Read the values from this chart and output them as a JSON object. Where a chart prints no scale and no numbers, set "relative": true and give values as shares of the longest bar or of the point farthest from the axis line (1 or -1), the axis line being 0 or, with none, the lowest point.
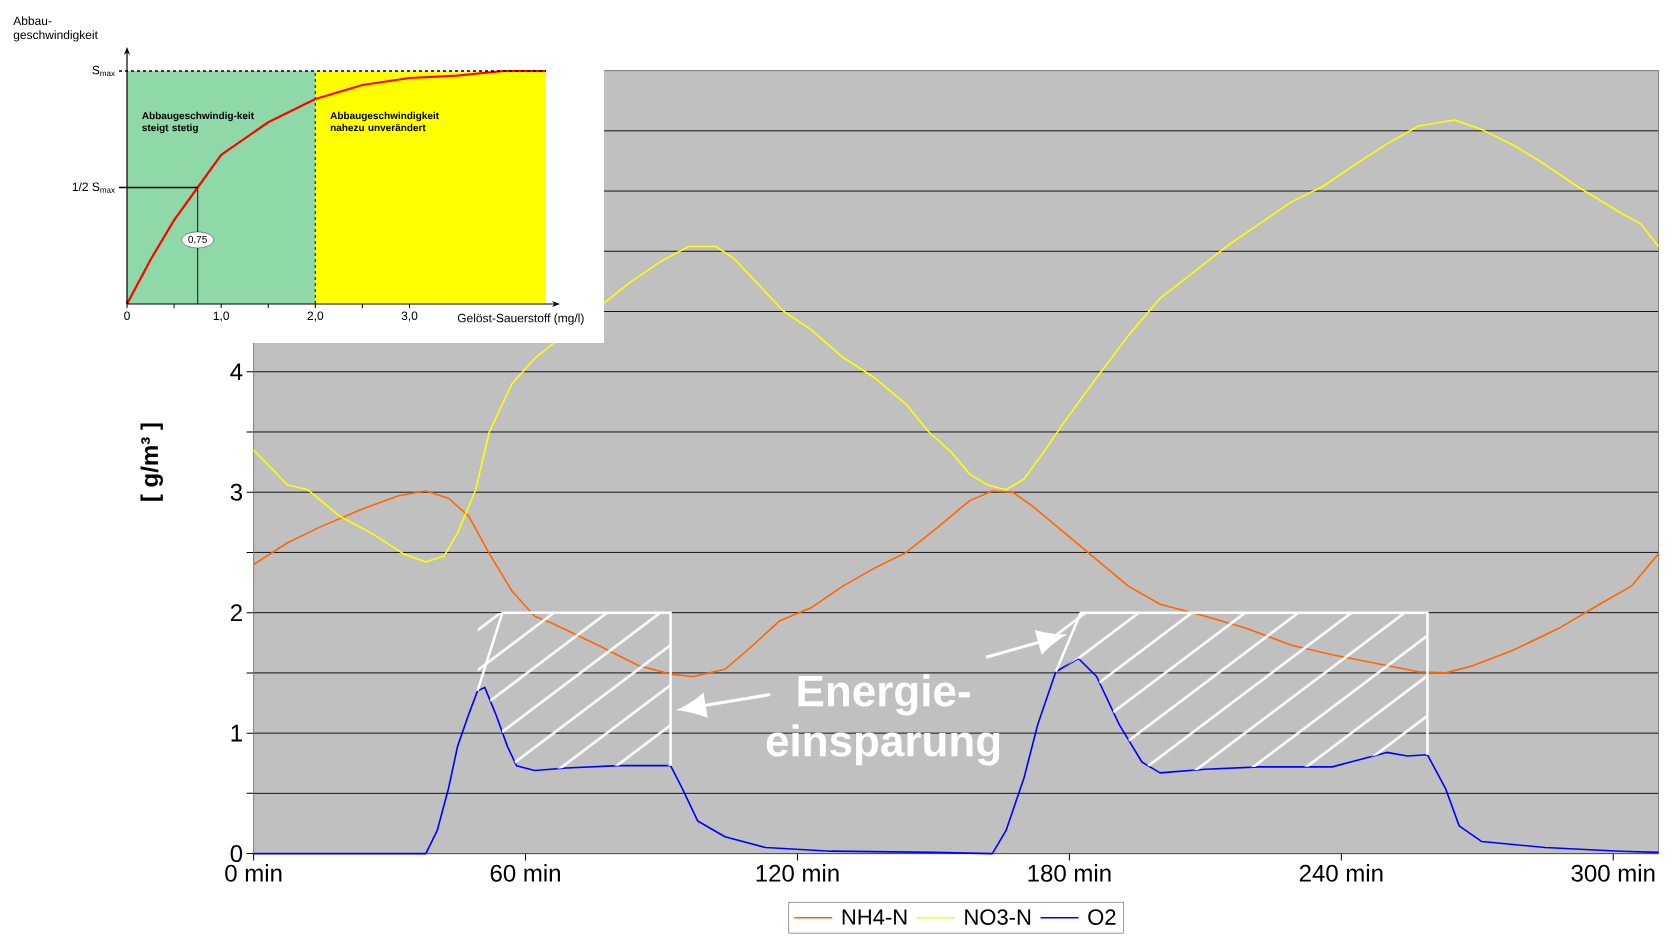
{
  "chart_data": [
    {
      "type": "line",
      "ylabel": "[ g/m³ ]",
      "xlim": [
        0,
        310
      ],
      "ylim": [
        0,
        6.5
      ],
      "xticks": [
        {
          "value": 0,
          "label": "0 min"
        },
        {
          "value": 60,
          "label": "60 min"
        },
        {
          "value": 120,
          "label": "120 min"
        },
        {
          "value": 180,
          "label": "180 min"
        },
        {
          "value": 240,
          "label": "240 min"
        },
        {
          "value": 300,
          "label": "300 min"
        }
      ],
      "yticks": [
        0,
        {
          "value": 0.5,
          "label": null
        },
        1,
        {
          "value": 1.5,
          "label": null
        },
        2,
        {
          "value": 2.5,
          "label": null
        },
        3,
        {
          "value": 3.5,
          "label": null
        },
        4,
        {
          "value": 4.5,
          "label": null
        },
        {
          "value": 5,
          "label": null
        },
        {
          "value": 5.5,
          "label": null
        },
        {
          "value": 6,
          "label": null
        }
      ],
      "grid": "y",
      "legend": "bottom",
      "series": [
        {
          "name": "NH4-N",
          "color": "#ff6600",
          "x": [
            0,
            7.5,
            14.6,
            24,
            32,
            38,
            43,
            47.5,
            52,
            57,
            62,
            66,
            76,
            85,
            92,
            97,
            104,
            109,
            116,
            123,
            130,
            137,
            144,
            151,
            158,
            163,
            167.5,
            172,
            179,
            186,
            193,
            200,
            210,
            219,
            229,
            238,
            247.5,
            257,
            263,
            269,
            278,
            288,
            297,
            304,
            310
          ],
          "values": [
            2.4,
            2.58,
            2.71,
            2.86,
            2.97,
            3.01,
            2.95,
            2.8,
            2.49,
            2.18,
            1.97,
            1.91,
            1.73,
            1.56,
            1.49,
            1.47,
            1.53,
            1.69,
            1.93,
            2.04,
            2.22,
            2.37,
            2.5,
            2.71,
            2.93,
            3.01,
            3.0,
            2.88,
            2.66,
            2.44,
            2.22,
            2.07,
            1.97,
            1.87,
            1.73,
            1.65,
            1.58,
            1.51,
            1.5,
            1.56,
            1.69,
            1.87,
            2.07,
            2.22,
            2.49
          ]
        },
        {
          "name": "NO3-N",
          "color": "#ffff00",
          "x": [
            0,
            7.5,
            12,
            19,
            26,
            33,
            38,
            42,
            45,
            49,
            52,
            57,
            62,
            83,
            90,
            96,
            102,
            106,
            111,
            117,
            123,
            130,
            137,
            144,
            149,
            154,
            158,
            162,
            166,
            170,
            175,
            179,
            186,
            193,
            200,
            207.5,
            215,
            222,
            229,
            236,
            243,
            250,
            257,
            265,
            271,
            278,
            285,
            292,
            301.6,
            306,
            310
          ],
          "values": [
            3.35,
            3.06,
            3.02,
            2.8,
            2.66,
            2.49,
            2.42,
            2.47,
            2.66,
            3.02,
            3.5,
            3.9,
            4.11,
            4.74,
            4.92,
            5.04,
            5.04,
            4.94,
            4.74,
            4.5,
            4.35,
            4.12,
            3.95,
            3.73,
            3.5,
            3.33,
            3.15,
            3.06,
            3.02,
            3.11,
            3.37,
            3.59,
            3.95,
            4.3,
            4.61,
            4.83,
            5.05,
            5.23,
            5.41,
            5.54,
            5.72,
            5.89,
            6.04,
            6.09,
            6.01,
            5.88,
            5.72,
            5.54,
            5.32,
            5.23,
            5.04
          ]
        },
        {
          "name": "O2",
          "color": "#0000ff",
          "x": [
            0,
            38,
            40.5,
            43,
            45,
            47.5,
            49.4,
            51,
            53.4,
            56,
            58,
            62,
            69,
            80.5,
            92,
            94.6,
            98,
            104,
            113,
            127.5,
            150,
            163,
            166,
            170,
            173,
            177,
            182,
            186,
            191,
            196,
            200,
            210,
            222,
            238,
            245,
            250,
            254.6,
            259,
            263,
            266,
            271,
            285,
            301.6,
            310
          ],
          "values": [
            0,
            0,
            0.19,
            0.54,
            0.89,
            1.16,
            1.35,
            1.38,
            1.16,
            0.89,
            0.73,
            0.69,
            0.71,
            0.73,
            0.73,
            0.54,
            0.27,
            0.14,
            0.05,
            0.02,
            0.01,
            0,
            0.19,
            0.63,
            1.07,
            1.51,
            1.62,
            1.47,
            1.07,
            0.76,
            0.67,
            0.7,
            0.72,
            0.72,
            0.79,
            0.84,
            0.81,
            0.82,
            0.54,
            0.23,
            0.1,
            0.05,
            0.02,
            0.01
          ]
        }
      ],
      "bands": [
        {
          "axis": "x",
          "from": 49.4,
          "to": 92,
          "color": "#ffffff"
        },
        {
          "axis": "x",
          "from": 177,
          "to": 259,
          "color": "#ffffff"
        }
      ],
      "annotations": [
        "Energie-einsparung"
      ]
    },
    {
      "type": "line",
      "xlabel": "Gelöst-Sauerstoff (mg/l)",
      "ylabel": "Abbau-geschwindigkeit",
      "xlim": [
        0,
        4.45
      ],
      "relative": true,
      "xticks": [
        0,
        {
          "value": 0.5,
          "label": null
        },
        {
          "value": 1,
          "label": "1,0"
        },
        {
          "value": 1.5,
          "label": null
        },
        {
          "value": 2,
          "label": "2,0"
        },
        {
          "value": 2.5,
          "label": null
        },
        {
          "value": 3,
          "label": "3,0"
        }
      ],
      "series": [
        {
          "color": "#ff0000",
          "x": [
            0,
            0.25,
            0.5,
            0.75,
            1.0,
            1.5,
            2.0,
            2.5,
            3.0,
            3.5,
            4.0,
            4.45
          ],
          "values": [
            0,
            0.19,
            0.36,
            0.5,
            0.64,
            0.78,
            0.88,
            0.94,
            0.97,
            0.98,
            1.0,
            1.0
          ]
        }
      ],
      "bands": [
        {
          "axis": "x",
          "from": 0,
          "to": 2,
          "color": "#8fd9a8",
          "label": "Abbaugeschwindig-keit steigt stetig"
        },
        {
          "axis": "x",
          "from": 2,
          "to": 4.45,
          "color": "#ffff00",
          "label": "Abbaugeschwindigkeit nahezu unverändert"
        }
      ],
      "ref_lines": [
        {
          "axis": "x",
          "value": 2,
          "line_style": "dashed"
        },
        {
          "axis": "y",
          "value": 1,
          "line_style": "dashed",
          "label": "S$_{max}$"
        },
        {
          "axis": "y",
          "value": 0.5,
          "line_style": "solid",
          "label": "1/2 S$_{max}$"
        },
        {
          "axis": "x",
          "value": 0.75,
          "line_style": "solid",
          "label": "0,75"
        }
      ]
    }
  ]
}
